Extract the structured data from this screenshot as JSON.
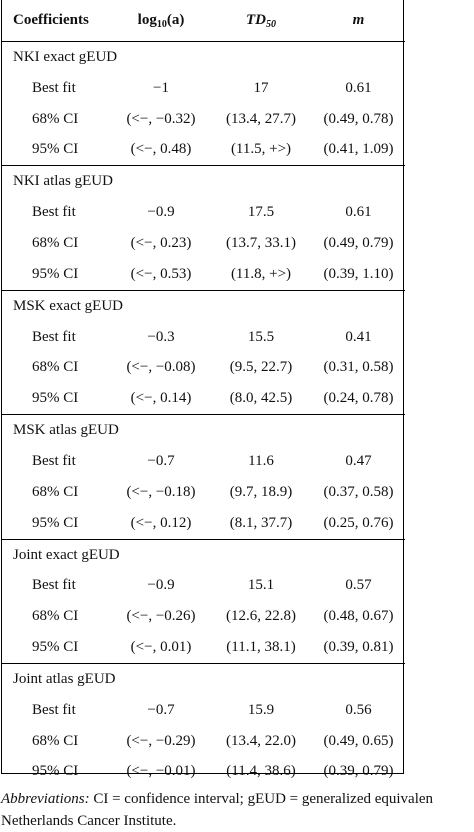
{
  "header": {
    "col1": "Coefficients",
    "col2_main": "log",
    "col2_sub": "10",
    "col2_tail": "(a)",
    "col3_main": "TD",
    "col3_sub": "50",
    "col4": "m"
  },
  "groups": [
    {
      "title": "NKI exact gEUD",
      "rows": [
        {
          "label": "Best fit",
          "log": "−1",
          "td": "17",
          "m": "0.61"
        },
        {
          "label": "68% CI",
          "log": "(<−, −0.32)",
          "td": "(13.4, 27.7)",
          "m": "(0.49, 0.78)"
        },
        {
          "label": "95% CI",
          "log": "(<−, 0.48)",
          "td": "(11.5, +>)",
          "m": "(0.41, 1.09)"
        }
      ]
    },
    {
      "title": "NKI atlas gEUD",
      "rows": [
        {
          "label": "Best fit",
          "log": "−0.9",
          "td": "17.5",
          "m": "0.61"
        },
        {
          "label": "68% CI",
          "log": "(<−, 0.23)",
          "td": "(13.7, 33.1)",
          "m": "(0.49, 0.79)"
        },
        {
          "label": "95% CI",
          "log": "(<−, 0.53)",
          "td": "(11.8, +>)",
          "m": "(0.39, 1.10)"
        }
      ]
    },
    {
      "title": "MSK exact gEUD",
      "rows": [
        {
          "label": "Best fit",
          "log": "−0.3",
          "td": "15.5",
          "m": "0.41"
        },
        {
          "label": "68% CI",
          "log": "(<−, −0.08)",
          "td": "(9.5, 22.7)",
          "m": "(0.31, 0.58)"
        },
        {
          "label": "95% CI",
          "log": "(<−, 0.14)",
          "td": "(8.0, 42.5)",
          "m": "(0.24, 0.78)"
        }
      ]
    },
    {
      "title": "MSK atlas gEUD",
      "rows": [
        {
          "label": "Best fit",
          "log": "−0.7",
          "td": "11.6",
          "m": "0.47"
        },
        {
          "label": "68% CI",
          "log": "(<−, −0.18)",
          "td": "(9.7, 18.9)",
          "m": "(0.37, 0.58)"
        },
        {
          "label": "95% CI",
          "log": "(<−, 0.12)",
          "td": "(8.1, 37.7)",
          "m": "(0.25, 0.76)"
        }
      ]
    },
    {
      "title": "Joint exact gEUD",
      "rows": [
        {
          "label": "Best fit",
          "log": "−0.9",
          "td": "15.1",
          "m": "0.57"
        },
        {
          "label": "68% CI",
          "log": "(<−, −0.26)",
          "td": "(12.6, 22.8)",
          "m": "(0.48, 0.67)"
        },
        {
          "label": "95% CI",
          "log": "(<−, 0.01)",
          "td": "(11.1, 38.1)",
          "m": "(0.39, 0.81)"
        }
      ]
    },
    {
      "title": "Joint atlas gEUD",
      "rows": [
        {
          "label": "Best fit",
          "log": "−0.7",
          "td": "15.9",
          "m": "0.56"
        },
        {
          "label": "68% CI",
          "log": "(<−, −0.29)",
          "td": "(13.4, 22.0)",
          "m": "(0.49, 0.65)"
        },
        {
          "label": "95% CI",
          "log": "(<−, −0.01)",
          "td": "(11.4, 38.6)",
          "m": "(0.39, 0.79)"
        }
      ]
    }
  ],
  "footnote": {
    "label": "Abbreviations:",
    "line1": " CI = confidence interval; gEUD = generalized equivalen",
    "line2": "Netherlands Cancer Institute."
  }
}
